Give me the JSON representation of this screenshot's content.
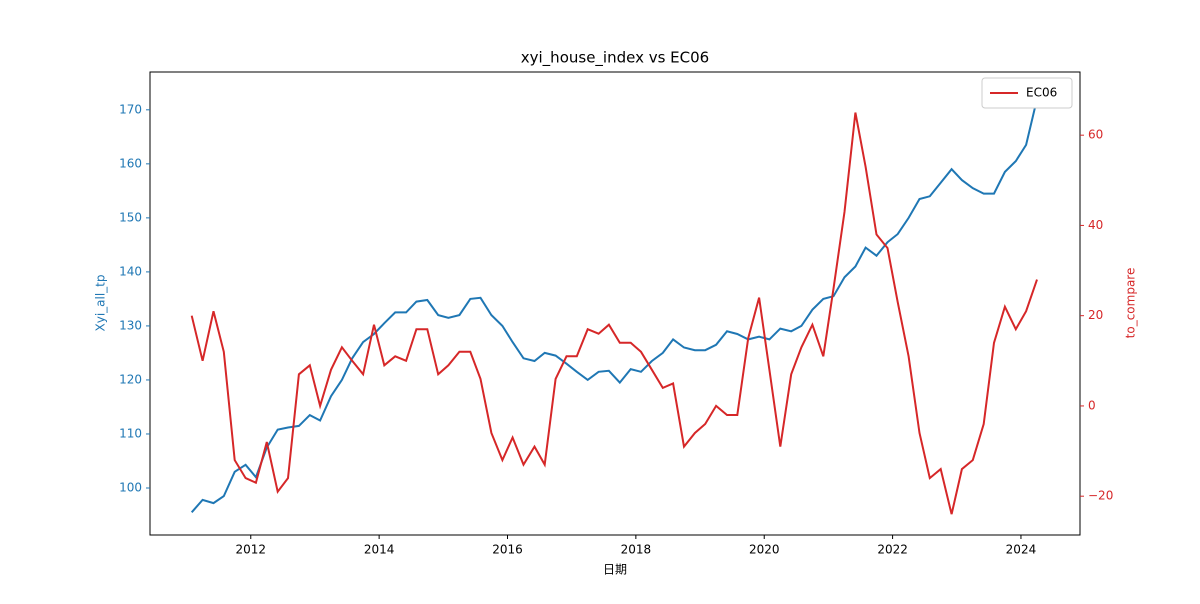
{
  "chart_data": {
    "type": "line",
    "title": "xyi_house_index vs EC06",
    "x_label": "日期",
    "y_label": "Xyi_all_tp",
    "y2_label": "to_compare",
    "x": [
      2011.08,
      2011.25,
      2011.42,
      2011.58,
      2011.75,
      2011.92,
      2012.08,
      2012.25,
      2012.42,
      2012.58,
      2012.75,
      2012.92,
      2013.08,
      2013.25,
      2013.42,
      2013.58,
      2013.75,
      2013.92,
      2014.08,
      2014.25,
      2014.42,
      2014.58,
      2014.75,
      2014.92,
      2015.08,
      2015.25,
      2015.42,
      2015.58,
      2015.75,
      2015.92,
      2016.08,
      2016.25,
      2016.42,
      2016.58,
      2016.75,
      2016.92,
      2017.08,
      2017.25,
      2017.42,
      2017.58,
      2017.75,
      2017.92,
      2018.08,
      2018.25,
      2018.42,
      2018.58,
      2018.75,
      2018.92,
      2019.08,
      2019.25,
      2019.42,
      2019.58,
      2019.75,
      2019.92,
      2020.08,
      2020.25,
      2020.42,
      2020.58,
      2020.75,
      2020.92,
      2021.08,
      2021.25,
      2021.42,
      2021.58,
      2021.75,
      2021.92,
      2022.08,
      2022.25,
      2022.42,
      2022.58,
      2022.75,
      2022.92,
      2023.08,
      2023.25,
      2023.42,
      2023.58,
      2023.75,
      2023.92,
      2024.08,
      2024.25
    ],
    "series": [
      {
        "color": "#1f77b4",
        "axis": "y",
        "values": [
          95.5,
          97.8,
          97.2,
          98.5,
          103,
          104.3,
          102,
          107.5,
          110.8,
          111.2,
          111.5,
          113.5,
          112.5,
          117,
          120,
          124,
          127,
          128.5,
          130.5,
          132.5,
          132.5,
          134.5,
          134.8,
          132,
          131.5,
          132,
          135,
          135.2,
          132,
          130,
          127,
          124,
          123.5,
          125,
          124.5,
          123,
          121.5,
          120,
          121.5,
          121.7,
          119.5,
          122,
          121.5,
          123.5,
          125,
          127.5,
          126,
          125.5,
          125.5,
          126.5,
          129,
          128.5,
          127.5,
          128,
          127.5,
          129.5,
          129,
          130,
          133,
          135,
          135.5,
          139,
          141,
          144.5,
          143,
          145.5,
          147,
          150,
          153.5,
          154,
          156.5,
          159,
          157,
          155.5,
          154.5,
          154.5,
          158.5,
          160.5,
          163.5,
          172
        ]
      },
      {
        "name": "EC06",
        "color": "#d62728",
        "axis": "y2",
        "values": [
          20,
          10,
          21,
          12,
          -12,
          -16,
          -17,
          -8,
          -19,
          -16,
          7,
          9,
          0,
          8,
          13,
          10,
          7,
          18,
          9,
          11,
          10,
          17,
          17,
          7,
          9,
          12,
          12,
          6,
          -6,
          -12,
          -7,
          -13,
          -9,
          -13,
          6,
          11,
          11,
          17,
          16,
          18,
          14,
          14,
          12,
          8,
          4,
          5,
          -9,
          -6,
          -4,
          0,
          -2,
          -2,
          15,
          24,
          8,
          -9,
          7,
          13,
          18,
          11,
          26,
          43,
          65,
          53,
          38,
          35,
          23,
          11,
          -6,
          -16,
          -14,
          -24,
          -14,
          -12,
          -4,
          14,
          22,
          17,
          21,
          28
        ]
      }
    ],
    "xlim": [
      2010.43,
      2024.92
    ],
    "xticks": [
      2012,
      2014,
      2016,
      2018,
      2020,
      2022,
      2024
    ],
    "ylim": [
      91.3,
      177.0
    ],
    "yticks": [
      100,
      110,
      120,
      130,
      140,
      150,
      160,
      170
    ],
    "y2lim": [
      -28.6,
      74.0
    ],
    "y2ticks": [
      {
        "value": -20,
        "label": "−20"
      },
      0,
      20,
      40,
      60
    ],
    "legend": "upper right"
  }
}
